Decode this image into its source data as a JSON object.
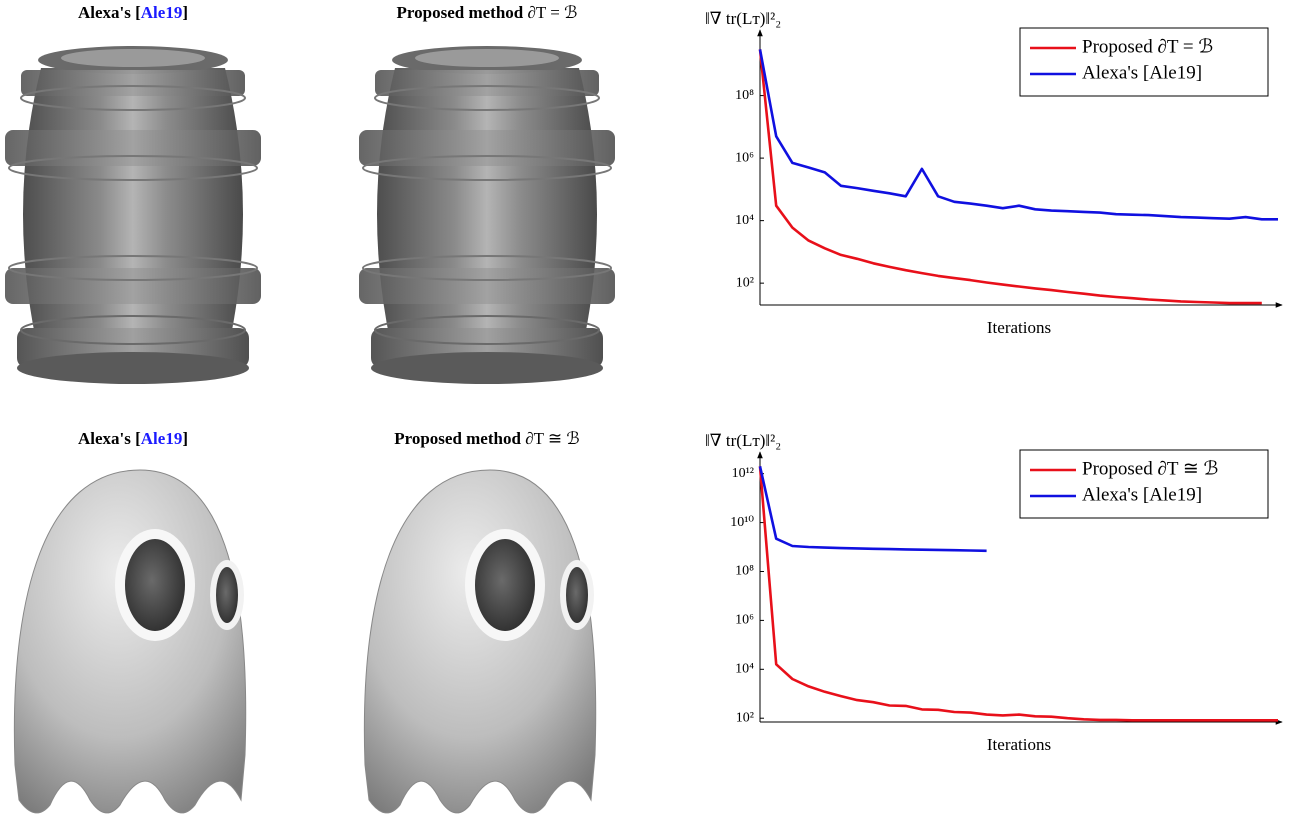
{
  "figure": {
    "captions": [
      [
        {
          "text": "Alexa's [",
          "bold": true
        },
        {
          "text": "Ale19",
          "bold": true,
          "color": "#1a1aff"
        },
        {
          "text": "]",
          "bold": true
        }
      ],
      [
        {
          "text": "Proposed method",
          "bold": true
        },
        {
          "text": " ∂T = ℬ",
          "bold": false
        }
      ],
      [
        {
          "text": "Alexa's [",
          "bold": true
        },
        {
          "text": "Ale19",
          "bold": true,
          "color": "#1a1aff"
        },
        {
          "text": "]",
          "bold": true
        }
      ],
      [
        {
          "text": "Proposed method",
          "bold": true
        },
        {
          "text": " ∂T ≅ ℬ",
          "bold": false
        }
      ]
    ]
  },
  "chart_data": [
    {
      "type": "line",
      "y_label": "‖∇ tr(Lᴛ)‖²₂",
      "x_label": "Iterations",
      "log_y": true,
      "legend": "upper right",
      "x": [
        0,
        1,
        2,
        3,
        4,
        5,
        6,
        7,
        8,
        9,
        10,
        11,
        12,
        13,
        14,
        15,
        16,
        17,
        18,
        19,
        20,
        21,
        22,
        23,
        24,
        25,
        26,
        27,
        28,
        29,
        30,
        31,
        32
      ],
      "xlim": [
        0,
        32
      ],
      "ylim": [
        20,
        6000000000
      ],
      "yticks": [
        {
          "value": 100,
          "label": "10²"
        },
        {
          "value": 10000,
          "label": "10⁴"
        },
        {
          "value": 1000000,
          "label": "10⁶"
        },
        {
          "value": 100000000,
          "label": "10⁸"
        }
      ],
      "series": [
        {
          "name": "Proposed ∂T = ℬ",
          "color": "#e8101a",
          "values": [
            3000000000,
            30000,
            6000,
            2300,
            1300,
            800,
            600,
            430,
            330,
            260,
            210,
            170,
            145,
            125,
            105,
            90,
            78,
            68,
            60,
            52,
            46,
            40,
            36,
            33,
            30,
            28,
            26,
            25,
            24,
            23,
            23,
            23,
            null
          ]
        },
        {
          "name": "Alexa's [Ale19]",
          "color": "#1010e0",
          "values": [
            3000000000,
            5000000,
            700000,
            500000,
            350000,
            130000,
            110000,
            90000,
            75000,
            60000,
            450000,
            60000,
            40000,
            35000,
            30000,
            25000,
            30000,
            23000,
            21000,
            20000,
            19000,
            18000,
            16000,
            15500,
            15000,
            14000,
            13000,
            12500,
            12000,
            11500,
            13000,
            11000,
            11000
          ]
        }
      ]
    },
    {
      "type": "line",
      "y_label": "‖∇ tr(Lᴛ)‖²₂",
      "x_label": "Iterations",
      "log_y": true,
      "legend": "upper right",
      "x": [
        0,
        1,
        2,
        3,
        4,
        5,
        6,
        7,
        8,
        9,
        10,
        11,
        12,
        13,
        14,
        15,
        16,
        17,
        18,
        19,
        20,
        21,
        22,
        23,
        24,
        25,
        26,
        27,
        28,
        29,
        30,
        31,
        32
      ],
      "xlim": [
        0,
        32
      ],
      "ylim": [
        70,
        3000000000000
      ],
      "yticks": [
        {
          "value": 100,
          "label": "10²"
        },
        {
          "value": 10000,
          "label": "10⁴"
        },
        {
          "value": 1000000,
          "label": "10⁶"
        },
        {
          "value": 100000000,
          "label": "10⁸"
        },
        {
          "value": 10000000000,
          "label": "10¹⁰"
        },
        {
          "value": 1000000000000,
          "label": "10¹²"
        }
      ],
      "series": [
        {
          "name": "Proposed ∂T ≅ ℬ",
          "color": "#e8101a",
          "values": [
            2000000000000,
            16000,
            4000,
            2000,
            1200,
            800,
            550,
            450,
            330,
            320,
            230,
            220,
            180,
            170,
            140,
            130,
            140,
            120,
            115,
            100,
            90,
            85,
            85,
            82,
            82,
            82,
            82,
            82,
            82,
            82,
            82,
            82,
            82
          ]
        },
        {
          "name": "Alexa's [Ale19]",
          "color": "#1010e0",
          "values": [
            2000000000000,
            2200000000,
            1100000000,
            1000000000,
            950000000,
            900000000,
            880000000,
            850000000,
            820000000,
            800000000,
            780000000,
            760000000,
            740000000,
            720000000,
            700000000,
            null,
            null,
            null,
            null,
            null,
            null,
            null,
            null,
            null,
            null,
            null,
            null,
            null,
            null,
            null,
            null,
            null,
            null
          ]
        }
      ]
    }
  ]
}
